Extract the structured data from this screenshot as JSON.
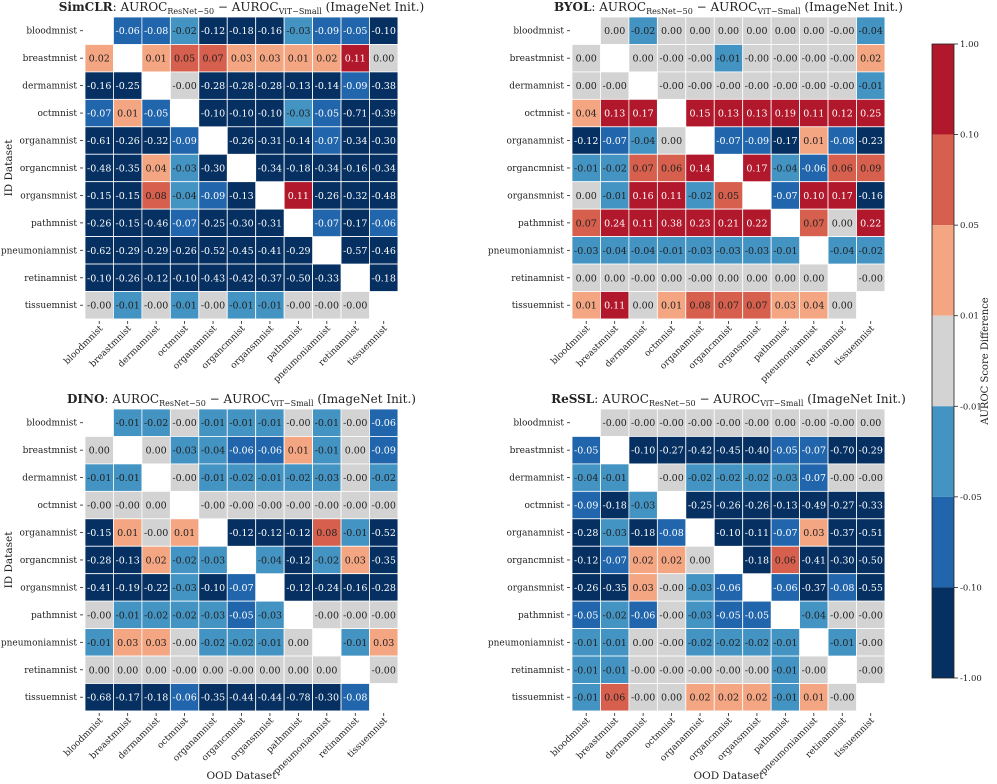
{
  "figure": {
    "colorbar": {
      "label": "AUROC Score Difference",
      "ticks": [
        "1.00",
        "0.10",
        "0.05",
        "0.01",
        "-0.01",
        "-0.05",
        "-0.10",
        "-1.00"
      ],
      "bands": [
        {
          "range": [
            0.1,
            1.0
          ],
          "color": "#b2182b"
        },
        {
          "range": [
            0.05,
            0.1
          ],
          "color": "#d6604d"
        },
        {
          "range": [
            0.01,
            0.05
          ],
          "color": "#f4a582"
        },
        {
          "range": [
            -0.01,
            0.01
          ],
          "color": "#d3d3d3"
        },
        {
          "range": [
            -0.05,
            -0.01
          ],
          "color": "#4393c3"
        },
        {
          "range": [
            -0.1,
            -0.05
          ],
          "color": "#2166ac"
        },
        {
          "range": [
            -1.0,
            -0.1
          ],
          "color": "#053061"
        }
      ]
    }
  },
  "chart_data": [
    {
      "type": "heatmap",
      "title_method": "SimCLR",
      "title_prefix": ": AUROC",
      "title_sub1": "ResNet−50",
      "title_minus": " − AUROC",
      "title_sub2": "ViT−Small",
      "title_suffix": " (ImageNet Init.)",
      "ylabel": "ID Dataset",
      "xlabel": "",
      "categories": [
        "bloodmnist",
        "breastmnist",
        "dermamnist",
        "octmnist",
        "organamnist",
        "organcmnist",
        "organsmnist",
        "pathmnist",
        "pneumoniamnist",
        "retinamnist",
        "tissuemnist"
      ],
      "values": [
        [
          null,
          -0.06,
          -0.08,
          -0.02,
          -0.12,
          -0.18,
          -0.16,
          -0.03,
          -0.09,
          -0.05,
          -0.1
        ],
        [
          0.02,
          null,
          0.01,
          0.05,
          0.07,
          0.03,
          0.03,
          0.01,
          0.02,
          0.11,
          0.0
        ],
        [
          -0.16,
          -0.25,
          null,
          -0.0,
          -0.28,
          -0.28,
          -0.28,
          -0.13,
          -0.14,
          -0.09,
          -0.38
        ],
        [
          -0.07,
          0.01,
          -0.05,
          null,
          -0.1,
          -0.1,
          -0.1,
          -0.03,
          -0.05,
          -0.71,
          -0.39
        ],
        [
          -0.61,
          -0.26,
          -0.32,
          -0.09,
          null,
          -0.26,
          -0.31,
          -0.14,
          -0.07,
          -0.34,
          -0.3
        ],
        [
          -0.48,
          -0.35,
          0.04,
          -0.03,
          -0.3,
          null,
          -0.34,
          -0.18,
          -0.34,
          -0.16,
          -0.34
        ],
        [
          -0.15,
          -0.15,
          0.08,
          -0.04,
          -0.09,
          -0.13,
          null,
          0.11,
          -0.26,
          -0.32,
          -0.48
        ],
        [
          -0.26,
          -0.15,
          -0.46,
          -0.07,
          -0.25,
          -0.3,
          -0.31,
          null,
          -0.07,
          -0.17,
          -0.06
        ],
        [
          -0.62,
          -0.29,
          -0.29,
          -0.26,
          -0.52,
          -0.45,
          -0.41,
          -0.29,
          null,
          -0.57,
          -0.46
        ],
        [
          -0.1,
          -0.26,
          -0.12,
          -0.1,
          -0.43,
          -0.42,
          -0.37,
          -0.5,
          -0.33,
          null,
          -0.18
        ],
        [
          -0.0,
          -0.01,
          -0.0,
          -0.01,
          -0.0,
          -0.01,
          -0.01,
          -0.0,
          -0.0,
          -0.0,
          null
        ]
      ]
    },
    {
      "type": "heatmap",
      "title_method": "BYOL",
      "title_prefix": ": AUROC",
      "title_sub1": "ResNet−50",
      "title_minus": " − AUROC",
      "title_sub2": "ViT−Small",
      "title_suffix": " (ImageNet Init.)",
      "ylabel": "",
      "xlabel": "",
      "categories": [
        "bloodmnist",
        "breastmnist",
        "dermamnist",
        "octmnist",
        "organamnist",
        "organcmnist",
        "organsmnist",
        "pathmnist",
        "pneumoniamnist",
        "retinamnist",
        "tissuemnist"
      ],
      "values": [
        [
          null,
          0.0,
          -0.02,
          0.0,
          0.0,
          0.0,
          0.0,
          0.0,
          0.0,
          -0.0,
          -0.04
        ],
        [
          0.0,
          null,
          0.0,
          -0.0,
          -0.0,
          -0.01,
          -0.0,
          -0.0,
          -0.0,
          -0.0,
          0.02
        ],
        [
          0.0,
          -0.0,
          null,
          -0.0,
          -0.0,
          -0.0,
          -0.0,
          -0.0,
          -0.0,
          -0.0,
          -0.01
        ],
        [
          0.04,
          0.13,
          0.17,
          null,
          0.15,
          0.13,
          0.13,
          0.19,
          0.11,
          0.12,
          0.25
        ],
        [
          -0.12,
          -0.07,
          -0.04,
          0.0,
          null,
          -0.07,
          -0.09,
          -0.17,
          0.01,
          -0.08,
          -0.23
        ],
        [
          -0.01,
          -0.02,
          0.07,
          0.06,
          0.14,
          null,
          0.17,
          -0.04,
          -0.06,
          0.06,
          0.09
        ],
        [
          0.0,
          -0.01,
          0.16,
          0.11,
          -0.02,
          0.05,
          null,
          -0.07,
          0.1,
          0.17,
          -0.16
        ],
        [
          0.07,
          0.24,
          0.11,
          0.38,
          0.23,
          0.21,
          0.22,
          null,
          0.07,
          0.0,
          0.22
        ],
        [
          -0.03,
          -0.04,
          -0.04,
          -0.01,
          -0.03,
          -0.03,
          -0.03,
          -0.01,
          null,
          -0.04,
          -0.02
        ],
        [
          0.0,
          0.0,
          -0.0,
          0.0,
          -0.0,
          0.0,
          0.0,
          0.0,
          0.0,
          null,
          -0.0
        ],
        [
          0.01,
          0.11,
          0.0,
          0.01,
          0.08,
          0.07,
          0.07,
          0.03,
          0.04,
          0.0,
          null
        ]
      ]
    },
    {
      "type": "heatmap",
      "title_method": "DINO",
      "title_prefix": ": AUROC",
      "title_sub1": "ResNet−50",
      "title_minus": " − AUROC",
      "title_sub2": "ViT−Small",
      "title_suffix": " (ImageNet Init.)",
      "ylabel": "ID Dataset",
      "xlabel": "OOD Dataset",
      "categories": [
        "bloodmnist",
        "breastmnist",
        "dermamnist",
        "octmnist",
        "organamnist",
        "organcmnist",
        "organsmnist",
        "pathmnist",
        "pneumoniamnist",
        "retinamnist",
        "tissuemnist"
      ],
      "values": [
        [
          null,
          -0.01,
          -0.02,
          -0.0,
          -0.01,
          -0.01,
          -0.01,
          -0.0,
          -0.01,
          -0.0,
          -0.06
        ],
        [
          0.0,
          null,
          0.0,
          -0.03,
          -0.04,
          -0.06,
          -0.06,
          0.01,
          -0.01,
          0.0,
          -0.09
        ],
        [
          -0.01,
          -0.01,
          null,
          -0.0,
          -0.01,
          -0.02,
          -0.01,
          -0.02,
          -0.03,
          -0.0,
          -0.02
        ],
        [
          -0.0,
          -0.0,
          0.0,
          null,
          -0.0,
          -0.0,
          -0.0,
          -0.0,
          -0.0,
          -0.0,
          -0.0
        ],
        [
          -0.15,
          0.01,
          -0.0,
          0.01,
          null,
          -0.12,
          -0.12,
          -0.12,
          0.08,
          -0.01,
          -0.52
        ],
        [
          -0.28,
          -0.13,
          0.02,
          -0.02,
          -0.03,
          null,
          -0.04,
          -0.12,
          -0.02,
          0.03,
          -0.35
        ],
        [
          -0.41,
          -0.19,
          -0.22,
          -0.03,
          -0.1,
          -0.07,
          null,
          -0.12,
          -0.24,
          -0.16,
          -0.28
        ],
        [
          -0.0,
          -0.01,
          -0.02,
          -0.02,
          -0.03,
          -0.05,
          -0.03,
          null,
          -0.0,
          -0.0,
          -0.0
        ],
        [
          -0.01,
          0.03,
          0.03,
          -0.0,
          -0.02,
          -0.02,
          -0.01,
          0.0,
          null,
          -0.01,
          0.03
        ],
        [
          0.0,
          0.0,
          0.0,
          -0.0,
          0.0,
          -0.0,
          0.0,
          0.0,
          0.0,
          null,
          -0.0
        ],
        [
          -0.68,
          -0.17,
          -0.18,
          -0.06,
          -0.35,
          -0.44,
          -0.44,
          -0.78,
          -0.3,
          -0.08,
          null
        ]
      ]
    },
    {
      "type": "heatmap",
      "title_method": "ReSSL",
      "title_prefix": ": AUROC",
      "title_sub1": "ResNet−50",
      "title_minus": " − AUROC",
      "title_sub2": "ViT−Small",
      "title_suffix": " (ImageNet Init.)",
      "ylabel": "",
      "xlabel": "OOD Dataset",
      "categories": [
        "bloodmnist",
        "breastmnist",
        "dermamnist",
        "octmnist",
        "organamnist",
        "organcmnist",
        "organsmnist",
        "pathmnist",
        "pneumoniamnist",
        "retinamnist",
        "tissuemnist"
      ],
      "values": [
        [
          null,
          -0.0,
          -0.0,
          -0.0,
          -0.0,
          -0.0,
          -0.0,
          0.0,
          -0.0,
          -0.0,
          0.0
        ],
        [
          -0.05,
          null,
          -0.1,
          -0.27,
          -0.42,
          -0.45,
          -0.4,
          -0.05,
          -0.07,
          -0.7,
          -0.29
        ],
        [
          -0.04,
          -0.01,
          null,
          -0.0,
          -0.02,
          -0.02,
          -0.02,
          -0.03,
          -0.07,
          -0.0,
          -0.0
        ],
        [
          -0.09,
          -0.18,
          -0.03,
          null,
          -0.25,
          -0.26,
          -0.26,
          -0.13,
          -0.49,
          -0.27,
          -0.33
        ],
        [
          -0.28,
          -0.03,
          -0.18,
          -0.08,
          null,
          -0.1,
          -0.11,
          -0.07,
          0.03,
          -0.37,
          -0.51
        ],
        [
          -0.12,
          -0.07,
          0.02,
          0.02,
          0.0,
          null,
          -0.18,
          0.06,
          -0.41,
          -0.3,
          -0.5
        ],
        [
          -0.26,
          -0.35,
          0.03,
          -0.0,
          -0.03,
          -0.06,
          null,
          -0.06,
          -0.37,
          -0.08,
          -0.55
        ],
        [
          -0.05,
          -0.02,
          -0.06,
          -0.0,
          -0.03,
          -0.05,
          -0.05,
          null,
          -0.04,
          -0.0,
          -0.0
        ],
        [
          -0.01,
          -0.01,
          0.0,
          -0.0,
          -0.02,
          -0.02,
          -0.02,
          -0.01,
          null,
          -0.01,
          -0.0
        ],
        [
          -0.01,
          -0.01,
          -0.0,
          -0.0,
          -0.0,
          -0.0,
          -0.0,
          -0.01,
          -0.0,
          null,
          -0.0
        ],
        [
          -0.01,
          0.06,
          -0.0,
          0.0,
          0.02,
          0.02,
          0.02,
          -0.01,
          0.01,
          -0.0,
          null
        ]
      ]
    }
  ]
}
